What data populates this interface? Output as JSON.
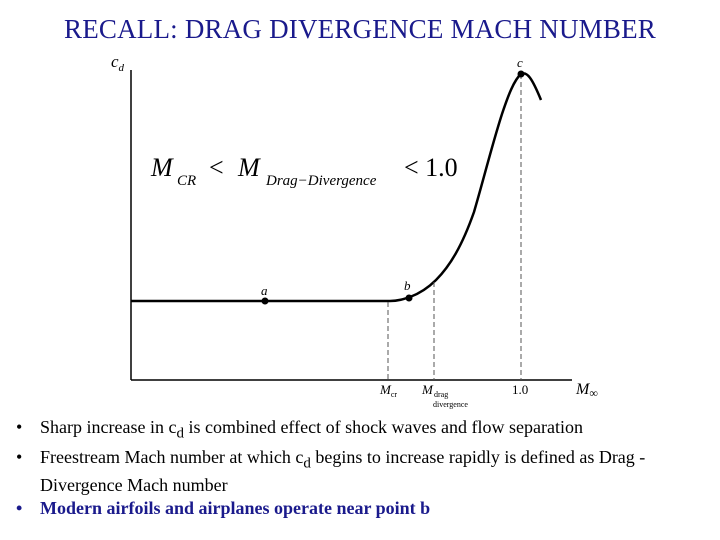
{
  "slide": {
    "title": "RECALL: DRAG DIVERGENCE MACH NUMBER"
  },
  "figure": {
    "y_axis_label": "c",
    "y_axis_label_sub": "d",
    "x_axis_label": "M",
    "x_axis_label_sub": "∞",
    "point_a": "a",
    "point_b": "b",
    "point_c": "c",
    "tick_mcr": "M",
    "tick_mcr_sub": "cr",
    "tick_mdd": "M",
    "tick_mdd_sub_line1": "drag",
    "tick_mdd_sub_line2": "divergence",
    "tick_one": "1.0",
    "equation": {
      "m1": "M",
      "sub1": "CR",
      "lt1": "<",
      "m2": "M",
      "sub2": "Drag−Divergence",
      "rhs": "< 1.0"
    }
  },
  "bullets": [
    {
      "marker": "•",
      "text_before": "Sharp increase in c",
      "sub": "d",
      "text_after": " is combined effect of shock waves and flow separation"
    },
    {
      "marker": "•",
      "text_before": "Freestream Mach number at which c",
      "sub": "d",
      "text_after": " begins to increase rapidly is defined as Drag -Divergence Mach number"
    },
    {
      "marker": "•",
      "text": "Modern airfoils and airplanes operate near point b"
    }
  ]
}
